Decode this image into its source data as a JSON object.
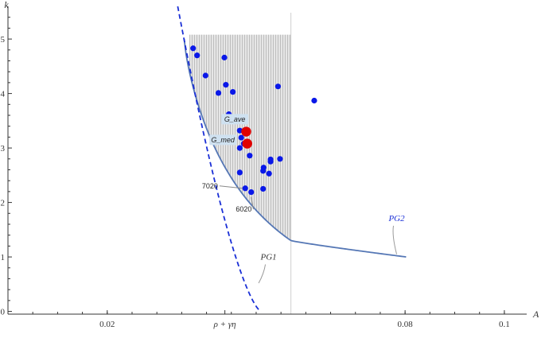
{
  "chart_data": {
    "type": "scatter",
    "title": "",
    "xlabel": "A",
    "ylabel": "k",
    "xlim": [
      0.0,
      0.1045
    ],
    "ylim": [
      -0.05,
      5.6
    ],
    "x_ticks": [
      {
        "value": 0.02,
        "label": "0.02"
      },
      {
        "value": 0.0437,
        "label": "ρ + γη"
      },
      {
        "value": 0.08,
        "label": "0.08"
      },
      {
        "value": 0.1,
        "label": "0.1"
      }
    ],
    "y_ticks": [
      {
        "value": 0,
        "label": "0"
      },
      {
        "value": 1,
        "label": "1"
      },
      {
        "value": 2,
        "label": "2"
      },
      {
        "value": 3,
        "label": "3"
      },
      {
        "value": 4,
        "label": "4"
      },
      {
        "value": 5,
        "label": "5"
      }
    ],
    "vertical_line_x": 0.057,
    "region": {
      "x_max": 0.057,
      "y_max": 5.08,
      "color": "#c8c8c8"
    },
    "curves": [
      {
        "name": "PG1",
        "style": "dashed",
        "color": "#1a2fd6",
        "label": "PG1",
        "label_at": [
          0.0525,
          0.95
        ],
        "leader_to": [
          0.0505,
          0.52
        ]
      },
      {
        "name": "PG2",
        "style": "solid",
        "color": "#5577b5",
        "label": "PG2",
        "label_at": [
          0.0783,
          1.66
        ],
        "leader_to": [
          0.0783,
          1.05
        ]
      }
    ],
    "points": [
      {
        "x": 0.0373,
        "y": 4.83
      },
      {
        "x": 0.0381,
        "y": 4.7
      },
      {
        "x": 0.0436,
        "y": 4.66
      },
      {
        "x": 0.0398,
        "y": 4.33
      },
      {
        "x": 0.0439,
        "y": 4.16
      },
      {
        "x": 0.0453,
        "y": 4.03
      },
      {
        "x": 0.0424,
        "y": 4.01
      },
      {
        "x": 0.0544,
        "y": 4.13
      },
      {
        "x": 0.0617,
        "y": 3.87
      },
      {
        "x": 0.0445,
        "y": 3.62
      },
      {
        "x": 0.0467,
        "y": 3.32
      },
      {
        "x": 0.047,
        "y": 3.19
      },
      {
        "x": 0.0475,
        "y": 3.08
      },
      {
        "x": 0.0467,
        "y": 3.0
      },
      {
        "x": 0.0487,
        "y": 2.86
      },
      {
        "x": 0.0529,
        "y": 2.79
      },
      {
        "x": 0.0529,
        "y": 2.75
      },
      {
        "x": 0.0548,
        "y": 2.8
      },
      {
        "x": 0.0515,
        "y": 2.64
      },
      {
        "x": 0.0514,
        "y": 2.58
      },
      {
        "x": 0.0526,
        "y": 2.53
      },
      {
        "x": 0.0467,
        "y": 2.55
      },
      {
        "x": 0.0478,
        "y": 2.26
      },
      {
        "x": 0.049,
        "y": 2.19
      },
      {
        "x": 0.0514,
        "y": 2.25
      }
    ],
    "highlight_points": [
      {
        "label": "G_ave",
        "x": 0.048,
        "y": 3.3,
        "color": "#e00000"
      },
      {
        "label": "G_med",
        "x": 0.0482,
        "y": 3.08,
        "color": "#e00000"
      }
    ],
    "annotations": [
      {
        "text": "G_ave",
        "x": 0.0457,
        "y": 3.5,
        "boxed": true
      },
      {
        "text": "G_med",
        "x": 0.0433,
        "y": 3.12,
        "boxed": true
      },
      {
        "text": "7020",
        "x": 0.0407,
        "y": 2.26,
        "boxed": false,
        "leader_to": [
          0.0472,
          2.26
        ]
      },
      {
        "text": "6020",
        "x": 0.0475,
        "y": 1.83,
        "boxed": false,
        "leader_to": [
          0.049,
          2.1
        ]
      }
    ],
    "colors": {
      "point": "#0a18e8",
      "axis": "#333333",
      "grid_line": "#d0d0d0",
      "annotation_box": "#cfe1f0"
    }
  }
}
